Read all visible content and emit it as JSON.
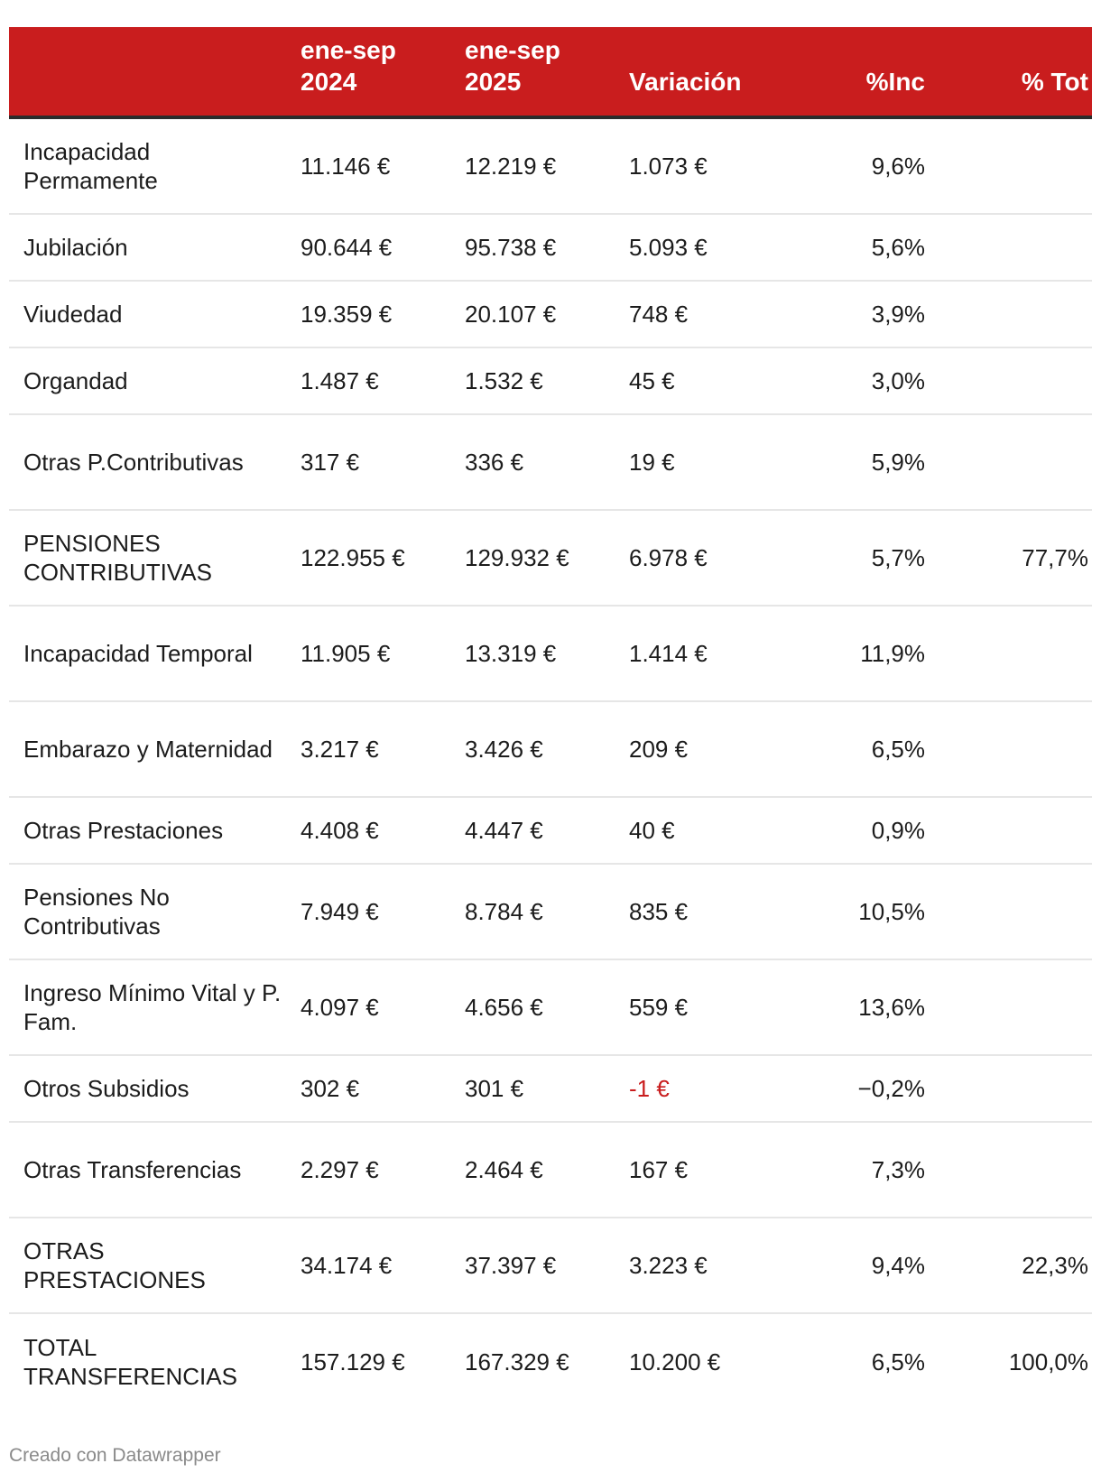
{
  "chart_data": {
    "type": "table",
    "columns": [
      "",
      "ene-sep 2024",
      "ene-sep 2025",
      "Variación",
      "%Inc",
      "% Tot"
    ],
    "rows": [
      {
        "label": "Incapacidad Permamente",
        "a": "11.146 €",
        "b": "12.219 €",
        "var": "1.073 €",
        "inc": "9,6%",
        "tot": "",
        "negative": false
      },
      {
        "label": "Jubilación",
        "a": "90.644 €",
        "b": "95.738 €",
        "var": "5.093 €",
        "inc": "5,6%",
        "tot": "",
        "negative": false
      },
      {
        "label": "Viudedad",
        "a": "19.359 €",
        "b": "20.107 €",
        "var": "748 €",
        "inc": "3,9%",
        "tot": "",
        "negative": false
      },
      {
        "label": "Organdad",
        "a": "1.487 €",
        "b": "1.532 €",
        "var": "45 €",
        "inc": "3,0%",
        "tot": "",
        "negative": false
      },
      {
        "label": "Otras P.Contributivas",
        "a": "317 €",
        "b": "336 €",
        "var": "19 €",
        "inc": "5,9%",
        "tot": "",
        "negative": false
      },
      {
        "label": "PENSIONES CONTRIBUTIVAS",
        "a": "122.955 €",
        "b": "129.932 €",
        "var": "6.978 €",
        "inc": "5,7%",
        "tot": "77,7%",
        "negative": false
      },
      {
        "label": "Incapacidad Temporal",
        "a": "11.905 €",
        "b": "13.319 €",
        "var": "1.414 €",
        "inc": "11,9%",
        "tot": "",
        "negative": false
      },
      {
        "label": "Embarazo y Maternidad",
        "a": "3.217 €",
        "b": "3.426 €",
        "var": "209 €",
        "inc": "6,5%",
        "tot": "",
        "negative": false
      },
      {
        "label": "Otras Prestaciones",
        "a": "4.408 €",
        "b": "4.447 €",
        "var": "40 €",
        "inc": "0,9%",
        "tot": "",
        "negative": false
      },
      {
        "label": "Pensiones No Contributivas",
        "a": "7.949 €",
        "b": "8.784 €",
        "var": "835 €",
        "inc": "10,5%",
        "tot": "",
        "negative": false
      },
      {
        "label": "Ingreso Mínimo Vital y P. Fam.",
        "a": "4.097 €",
        "b": "4.656 €",
        "var": "559 €",
        "inc": "13,6%",
        "tot": "",
        "negative": false
      },
      {
        "label": "Otros Subsidios",
        "a": "302 €",
        "b": "301 €",
        "var": "-1 €",
        "inc": "−0,2%",
        "tot": "",
        "negative": true
      },
      {
        "label": "Otras Transferencias",
        "a": "2.297 €",
        "b": "2.464 €",
        "var": "167 €",
        "inc": "7,3%",
        "tot": "",
        "negative": false
      },
      {
        "label": "OTRAS PRESTACIONES",
        "a": "34.174 €",
        "b": "37.397 €",
        "var": "3.223 €",
        "inc": "9,4%",
        "tot": "22,3%",
        "negative": false
      },
      {
        "label": "TOTAL TRANSFERENCIAS",
        "a": "157.129 €",
        "b": "167.329 €",
        "var": "10.200 €",
        "inc": "6,5%",
        "tot": "100,0%",
        "negative": false
      }
    ]
  },
  "header": {
    "col_a": "ene-sep\n2024",
    "col_b": "ene-sep\n2025",
    "col_var": "Variación",
    "col_inc": "%Inc",
    "col_tot": "% Tot"
  },
  "colors": {
    "header_bg": "#c91d1e",
    "negative": "#c91d1e"
  },
  "footer": {
    "credit": "Creado con Datawrapper"
  }
}
